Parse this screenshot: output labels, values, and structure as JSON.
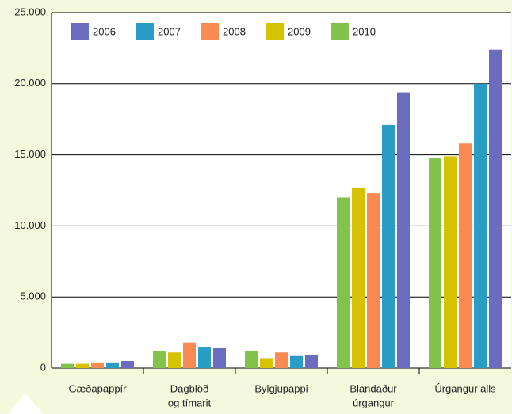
{
  "chart_data": {
    "type": "bar",
    "categories": [
      [
        "Gæðapappír"
      ],
      [
        "Dagblöð",
        "og tímarit"
      ],
      [
        "Bylgjupappi"
      ],
      [
        "Blandaður",
        "úrgangur"
      ],
      [
        "Úrgangur alls"
      ]
    ],
    "series": [
      {
        "name": "2006",
        "color": "#6b6bc0",
        "values": [
          500,
          1400,
          950,
          19400,
          22400
        ]
      },
      {
        "name": "2007",
        "color": "#2a9dc6",
        "values": [
          400,
          1500,
          850,
          17100,
          20000
        ]
      },
      {
        "name": "2008",
        "color": "#f88a52",
        "values": [
          400,
          1800,
          1100,
          12300,
          15800
        ]
      },
      {
        "name": "2009",
        "color": "#d6c300",
        "values": [
          300,
          1100,
          700,
          12700,
          14900
        ]
      },
      {
        "name": "2010",
        "color": "#80c44c",
        "values": [
          300,
          1200,
          1200,
          12000,
          14800
        ]
      }
    ],
    "ylim": [
      0,
      25000
    ],
    "yticks": [
      0,
      {
        "value": 5000,
        "label": "5.000"
      },
      {
        "value": 10000,
        "label": "10.000"
      },
      {
        "value": 15000,
        "label": "15.000"
      },
      {
        "value": 20000,
        "label": "20.000"
      },
      {
        "value": 25000,
        "label": "25.000"
      }
    ],
    "grid": true
  }
}
